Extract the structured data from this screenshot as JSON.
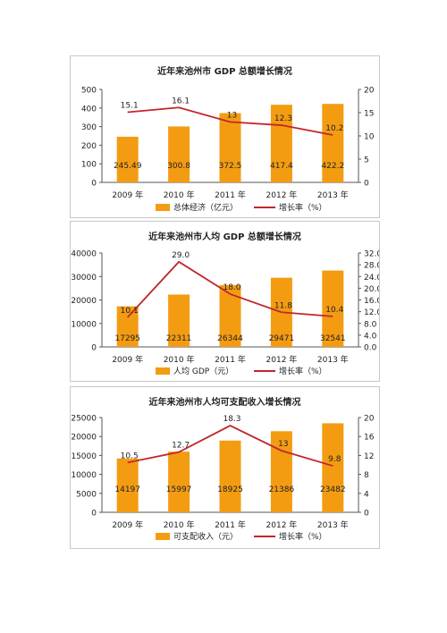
{
  "chart_data": [
    {
      "type": "bar",
      "title": "近年来池州市 GDP 总额增长情况",
      "categories": [
        "2009 年",
        "2010 年",
        "2011 年",
        "2012 年",
        "2013 年"
      ],
      "series": [
        {
          "name": "总体经济（亿元）",
          "type": "bar",
          "axis": "left",
          "values": [
            245.49,
            300.8,
            372.5,
            417.4,
            422.2
          ],
          "labels": [
            "245.49",
            "300.8",
            "372.5",
            "417.4",
            "422.2"
          ]
        },
        {
          "name": "增长率（%）",
          "type": "line",
          "axis": "right",
          "values": [
            15.1,
            16.1,
            13,
            12.3,
            10.2
          ],
          "labels": [
            "15.1",
            "16.1",
            "13",
            "12.3",
            "10.2"
          ]
        }
      ],
      "left_axis": {
        "ylim": [
          0,
          500
        ],
        "ticks": [
          "0",
          "100",
          "200",
          "300",
          "400",
          "500"
        ]
      },
      "right_axis": {
        "ylim": [
          0,
          20
        ],
        "ticks": [
          "0",
          "5",
          "10",
          "15",
          "20"
        ]
      },
      "legend": "bottom",
      "grid": false
    },
    {
      "type": "bar",
      "title": "近年来池州市人均 GDP 总额增长情况",
      "categories": [
        "2009 年",
        "2010 年",
        "2011 年",
        "2012 年",
        "2013 年"
      ],
      "series": [
        {
          "name": "人均 GDP（元）",
          "type": "bar",
          "axis": "left",
          "values": [
            17295,
            22311,
            26344,
            29471,
            32541
          ],
          "labels": [
            "17295",
            "22311",
            "26344",
            "29471",
            "32541"
          ]
        },
        {
          "name": "增长率（%）",
          "type": "line",
          "axis": "right",
          "values": [
            10.1,
            29.0,
            18.0,
            11.8,
            10.4
          ],
          "labels": [
            "10.1",
            "29.0",
            "18.0",
            "11.8",
            "10.4"
          ]
        }
      ],
      "left_axis": {
        "ylim": [
          0,
          40000
        ],
        "ticks": [
          "0",
          "10000",
          "20000",
          "30000",
          "40000"
        ]
      },
      "right_axis": {
        "ylim": [
          0,
          32
        ],
        "ticks": [
          "0.0",
          "4.0",
          "8.0",
          "12.0",
          "16.0",
          "20.0",
          "24.0",
          "28.0",
          "32.0"
        ]
      },
      "legend": "bottom",
      "grid": false
    },
    {
      "type": "bar",
      "title": "近年来池州市人均可支配收入增长情况",
      "categories": [
        "2009 年",
        "2010 年",
        "2011 年",
        "2012 年",
        "2013 年"
      ],
      "series": [
        {
          "name": "可支配收入（元）",
          "type": "bar",
          "axis": "left",
          "values": [
            14197,
            15997,
            18925,
            21386,
            23482
          ],
          "labels": [
            "14197",
            "15997",
            "18925",
            "21386",
            "23482"
          ]
        },
        {
          "name": "增长率（%）",
          "type": "line",
          "axis": "right",
          "values": [
            10.5,
            12.7,
            18.3,
            13,
            9.8
          ],
          "labels": [
            "10.5",
            "12.7",
            "18.3",
            "13",
            "9.8"
          ]
        }
      ],
      "left_axis": {
        "ylim": [
          0,
          25000
        ],
        "ticks": [
          "0",
          "5000",
          "10000",
          "15000",
          "20000",
          "25000"
        ]
      },
      "right_axis": {
        "ylim": [
          0,
          20
        ],
        "ticks": [
          "0",
          "4",
          "8",
          "12",
          "16",
          "20"
        ]
      },
      "legend": "bottom",
      "grid": false
    }
  ],
  "colors": {
    "bar": "#f39c12",
    "line": "#c0272d",
    "axis": "#555555",
    "text": "#222222"
  }
}
